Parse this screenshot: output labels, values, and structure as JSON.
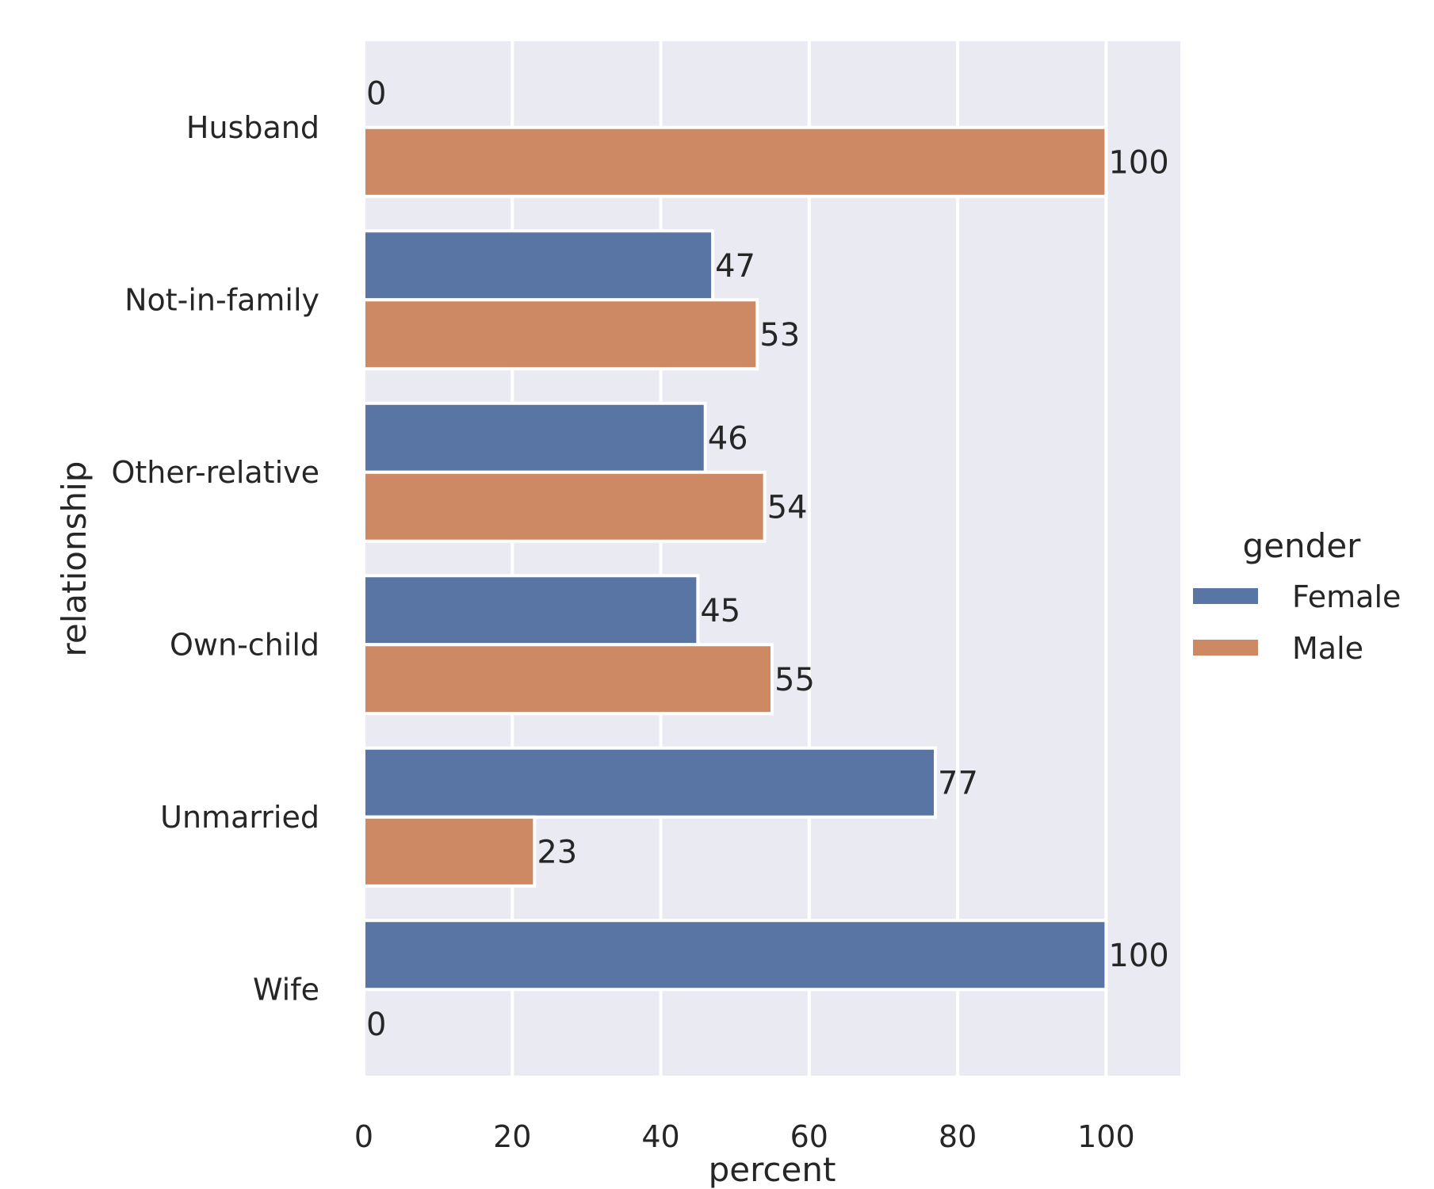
{
  "chart_data": {
    "type": "bar",
    "orientation": "horizontal",
    "categories": [
      "Husband",
      "Not-in-family",
      "Other-relative",
      "Own-child",
      "Unmarried",
      "Wife"
    ],
    "series": [
      {
        "name": "Female",
        "values": [
          0,
          47,
          46,
          45,
          77,
          100
        ],
        "labels": [
          "0",
          "47",
          "46",
          "45",
          "77",
          "100"
        ],
        "color": "#5875a4"
      },
      {
        "name": "Male",
        "values": [
          100,
          53,
          54,
          55,
          23,
          0
        ],
        "labels": [
          "100",
          "53",
          "54",
          "55",
          "23",
          "0"
        ],
        "color": "#cc8963"
      }
    ],
    "xlabel": "percent",
    "ylabel": "relationship",
    "xlim": [
      0,
      110
    ],
    "xticks": [
      0,
      20,
      40,
      60,
      80,
      100
    ],
    "xtick_labels": [
      "0",
      "20",
      "40",
      "60",
      "80",
      "100"
    ],
    "grid": true,
    "legend": {
      "title": "gender",
      "placement": "right"
    },
    "background_color": "#eaeaf2",
    "grid_color": "#ffffff"
  }
}
